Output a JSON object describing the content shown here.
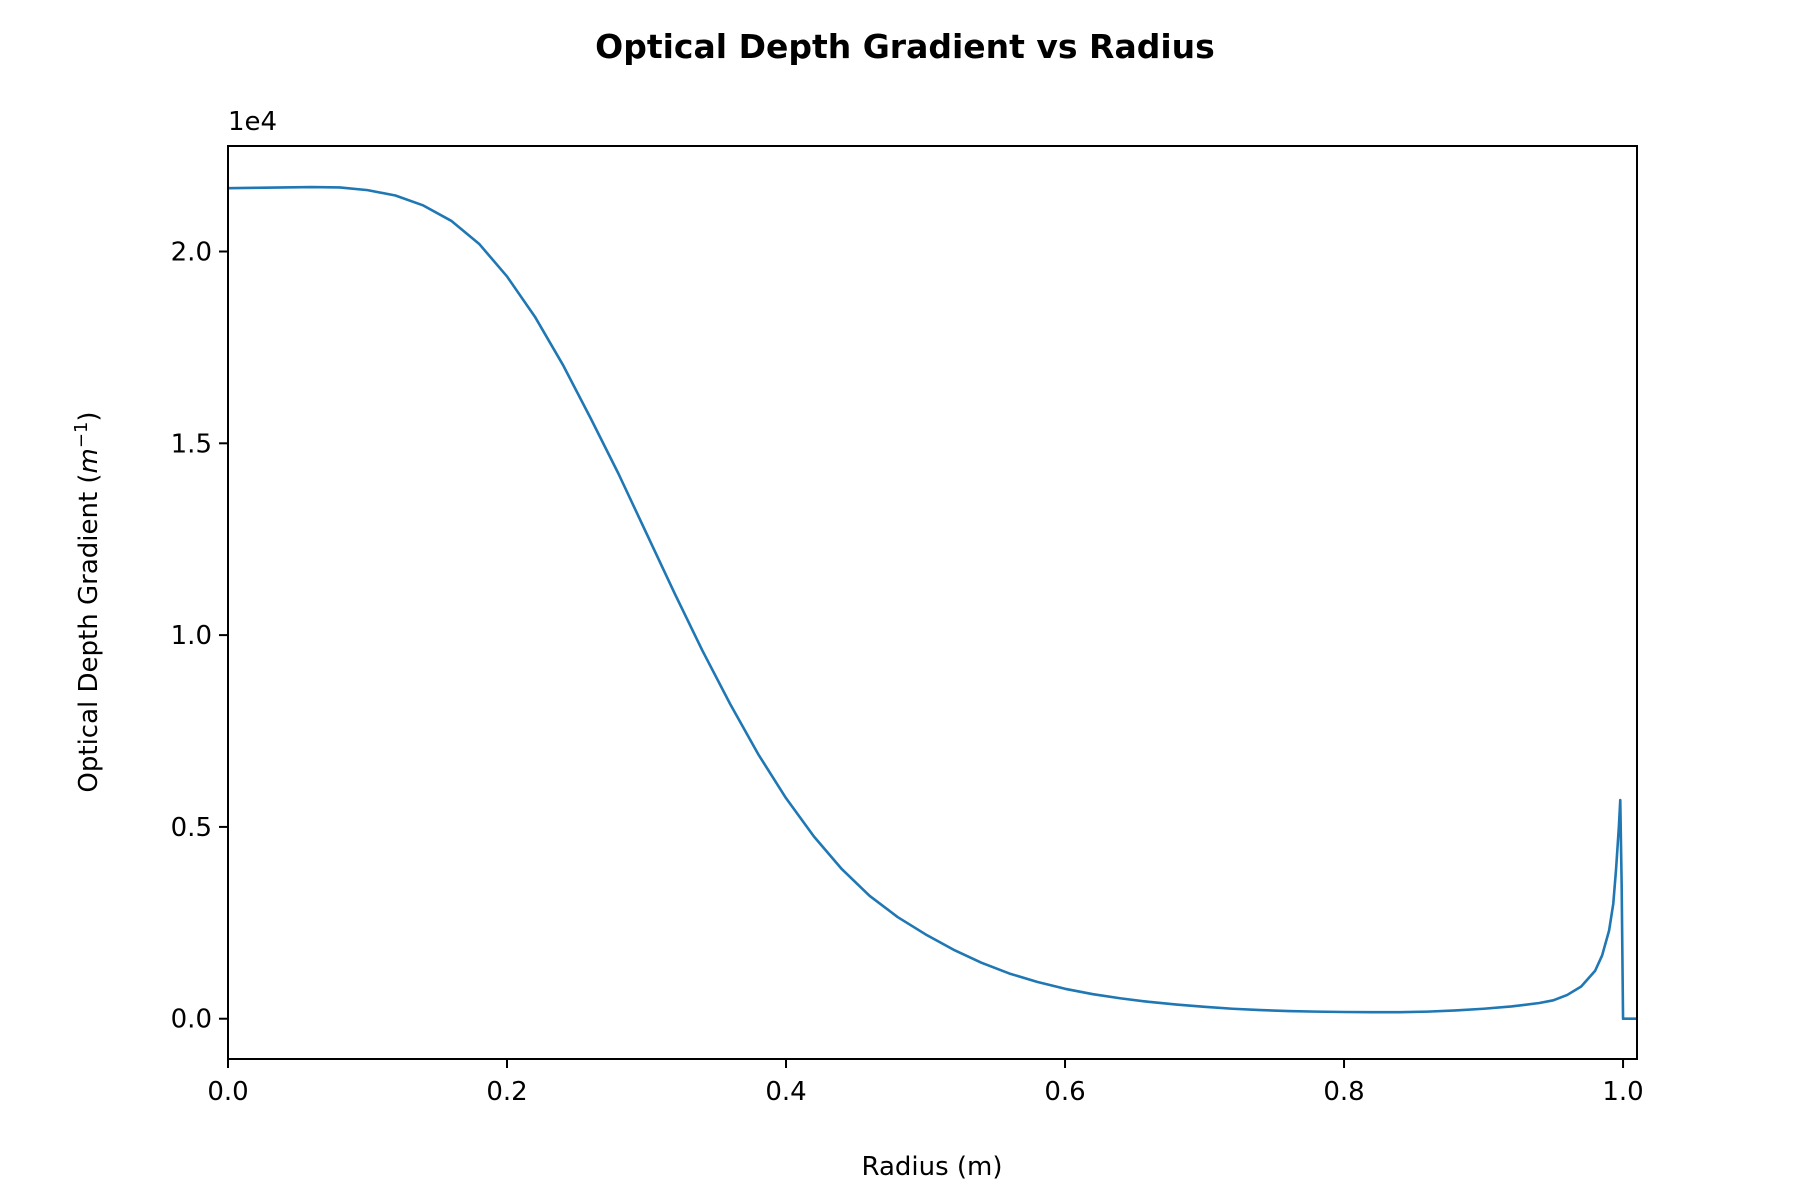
{
  "chart_data": {
    "type": "line",
    "title": "Optical Depth Gradient vs Radius",
    "xlabel": "Radius (m)",
    "ylabel_main": "Optical Depth Gradient (",
    "ylabel_var": "m",
    "ylabel_sup": "−1",
    "ylabel_close": ")",
    "y_offset_text": "1e4",
    "xlim": [
      0.0,
      1.01
    ],
    "ylim": [
      -1050,
      22750
    ],
    "xticks": [
      0.0,
      0.2,
      0.4,
      0.6,
      0.8,
      1.0
    ],
    "xtick_labels": [
      "0.0",
      "0.2",
      "0.4",
      "0.6",
      "0.8",
      "1.0"
    ],
    "yticks": [
      0,
      5000,
      10000,
      15000,
      20000
    ],
    "ytick_labels": [
      "0.0",
      "0.5",
      "1.0",
      "1.5",
      "2.0"
    ],
    "grid": false,
    "line_color": "#1f77b4",
    "series": [
      {
        "x": [
          0.0,
          0.02,
          0.04,
          0.06,
          0.08,
          0.1,
          0.12,
          0.14,
          0.16,
          0.18,
          0.2,
          0.22,
          0.24,
          0.26,
          0.28,
          0.3,
          0.32,
          0.34,
          0.36,
          0.38,
          0.4,
          0.42,
          0.44,
          0.46,
          0.48,
          0.5,
          0.52,
          0.54,
          0.56,
          0.58,
          0.6,
          0.62,
          0.64,
          0.66,
          0.68,
          0.7,
          0.72,
          0.74,
          0.76,
          0.78,
          0.8,
          0.82,
          0.84,
          0.86,
          0.88,
          0.9,
          0.92,
          0.94,
          0.95,
          0.96,
          0.97,
          0.98,
          0.985,
          0.99,
          0.993,
          0.995,
          0.997,
          0.998,
          0.999,
          1.0,
          1.005,
          1.01
        ],
        "y": [
          21650,
          21660,
          21670,
          21680,
          21670,
          21600,
          21460,
          21200,
          20800,
          20200,
          19350,
          18300,
          17050,
          15650,
          14200,
          12650,
          11100,
          9600,
          8200,
          6900,
          5750,
          4750,
          3900,
          3200,
          2650,
          2200,
          1800,
          1460,
          1180,
          960,
          780,
          640,
          530,
          440,
          370,
          310,
          260,
          225,
          200,
          185,
          175,
          170,
          170,
          185,
          215,
          260,
          320,
          410,
          480,
          620,
          840,
          1250,
          1650,
          2300,
          3000,
          3900,
          5000,
          5700,
          3500,
          0,
          0,
          0
        ]
      }
    ]
  }
}
